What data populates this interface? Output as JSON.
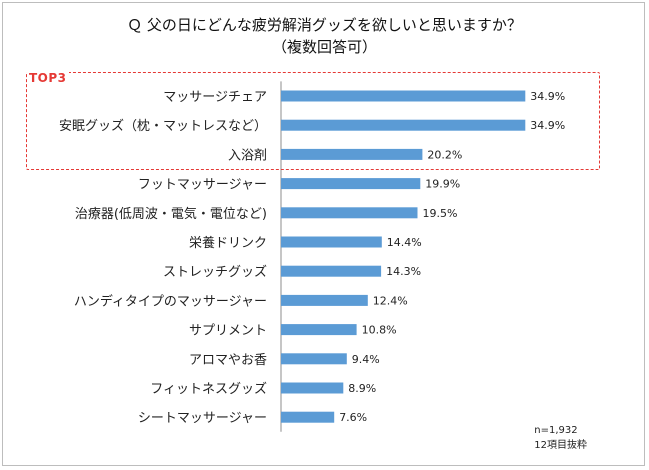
{
  "chart_data": {
    "type": "bar",
    "orientation": "horizontal",
    "title": "Ｑ 父の日にどんな疲労解消グッズを欲しいと思いますか？",
    "subtitle": "（複数回答可）",
    "categories": [
      "マッサージチェア",
      "安眠グッズ（枕・マットレスなど）",
      "入浴剤",
      "フットマッサージャー",
      "治療器(低周波・電気・電位など)",
      "栄養ドリンク",
      "ストレッチグッズ",
      "ハンディタイプのマッサージャー",
      "サプリメント",
      "アロマやお香",
      "フィットネスグッズ",
      "シートマッサージャー"
    ],
    "values": [
      34.9,
      34.9,
      20.2,
      19.9,
      19.5,
      14.4,
      14.3,
      12.4,
      10.8,
      9.4,
      8.9,
      7.6
    ],
    "value_labels": [
      "34.9%",
      "34.9%",
      "20.2%",
      "19.9%",
      "19.5%",
      "14.4%",
      "14.3%",
      "12.4%",
      "10.8%",
      "9.4%",
      "8.9%",
      "7.6%"
    ],
    "bar_color": "#5b9bd5",
    "xlim": [
      0,
      40
    ],
    "grid": false,
    "highlight": {
      "label": "TOP3",
      "color": "#e53935",
      "count": 3
    },
    "notes": [
      "n=1,932",
      "12項目抜粋"
    ]
  }
}
